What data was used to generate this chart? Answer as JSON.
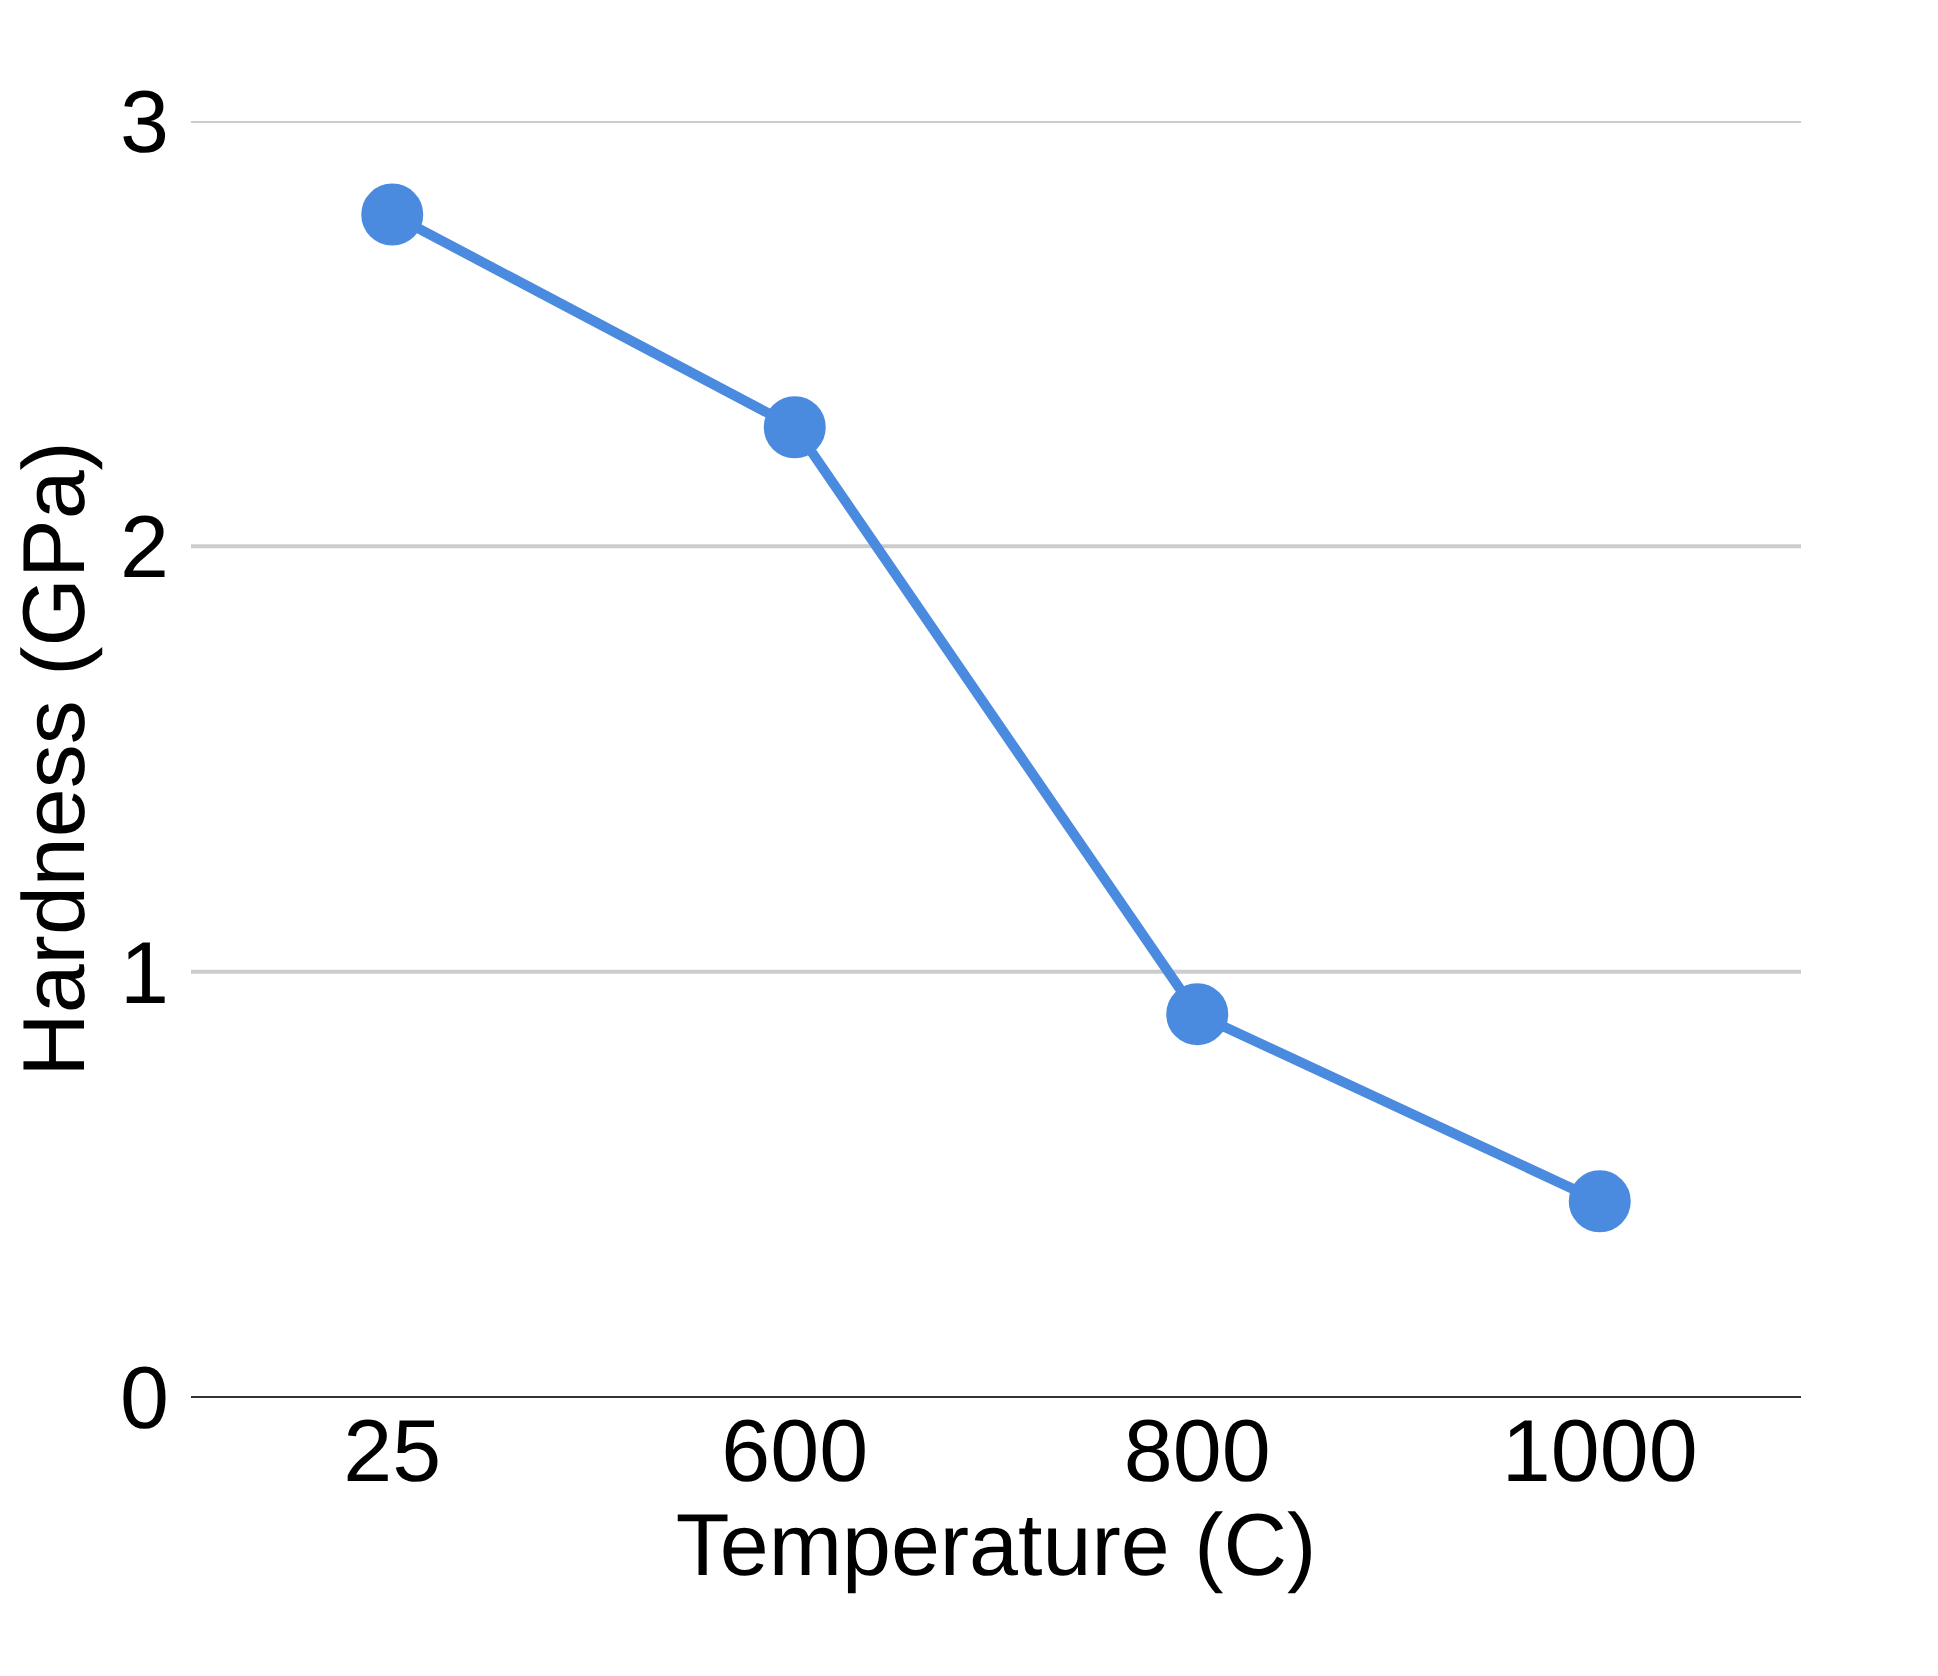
{
  "chart_data": {
    "type": "line",
    "xlabel": "Temperature (C)",
    "ylabel": "Hardness (GPa)",
    "categories": [
      "25",
      "600",
      "800",
      "1000"
    ],
    "series": [
      {
        "color": "#4a8be0",
        "values": [
          2.78,
          2.28,
          0.9,
          0.46
        ]
      }
    ],
    "ylim": [
      0,
      3
    ],
    "yticks": [
      0,
      1,
      2,
      3
    ],
    "grid": "y",
    "marker": "circle",
    "line_style": "solid"
  }
}
